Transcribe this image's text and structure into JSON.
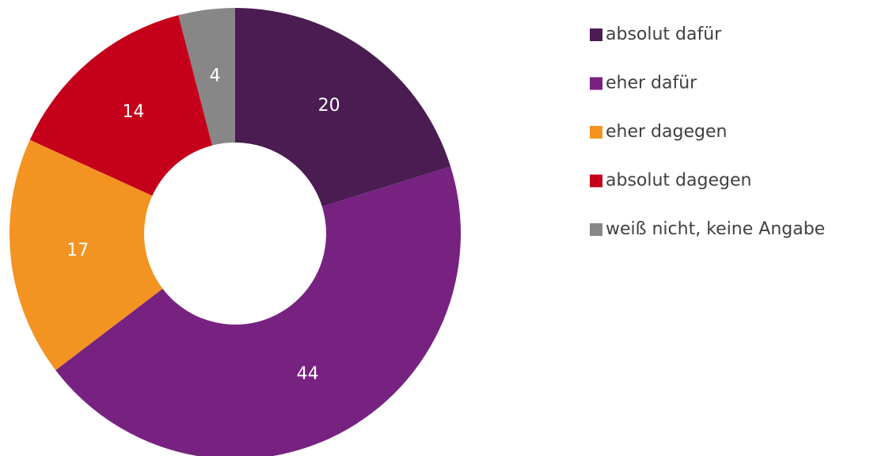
{
  "chart_data": {
    "type": "donut",
    "categories": [
      "absolut dafür",
      "eher dafür",
      "eher dagegen",
      "absolut dagegen",
      "weiß nicht, keine Angabe"
    ],
    "values": [
      20,
      44,
      17,
      14,
      4
    ],
    "colors": [
      "#4a1c52",
      "#772281",
      "#f39322",
      "#c5001a",
      "#878787"
    ],
    "legend": "right"
  }
}
